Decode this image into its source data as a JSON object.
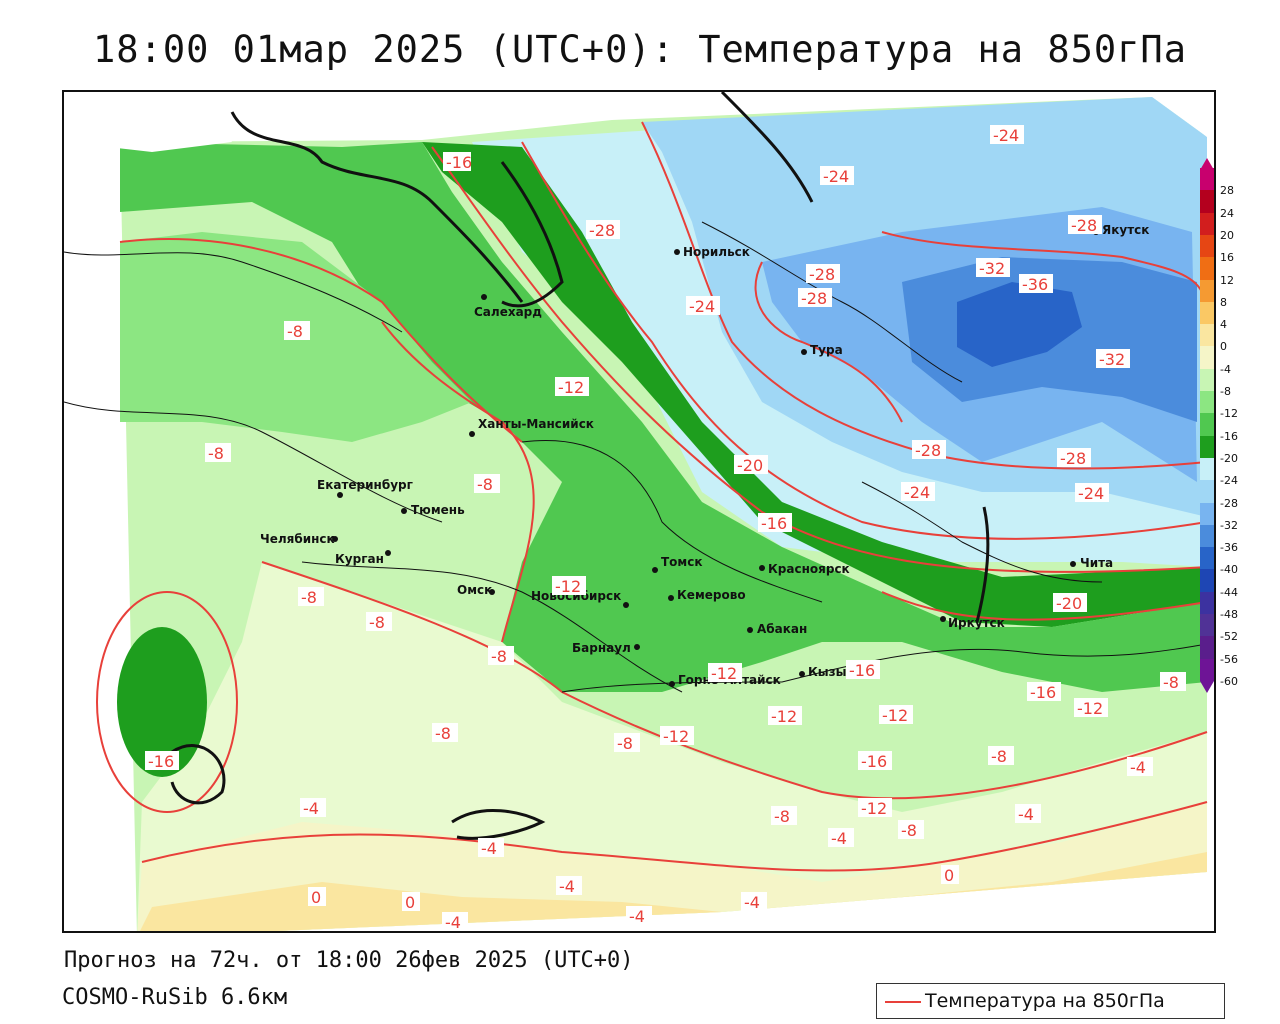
{
  "title": "18:00 01мар 2025 (UTC+0): Температура на 850гПа",
  "footer": {
    "forecast": "Прогноз на 72ч. от 18:00 26фев 2025 (UTC+0)",
    "model": "COSMO-RuSib 6.6км"
  },
  "legend": {
    "label": "Температура на 850гПа",
    "color": "#e8403a"
  },
  "colorbar": {
    "ticks": [
      "28",
      "24",
      "20",
      "16",
      "12",
      "8",
      "4",
      "0",
      "-4",
      "-8",
      "-12",
      "-16",
      "-20",
      "-24",
      "-28",
      "-32",
      "-36",
      "-40",
      "-44",
      "-48",
      "-52",
      "-56",
      "-60"
    ],
    "colors": [
      "#c8006e",
      "#b4001e",
      "#d21e1e",
      "#e64614",
      "#f06e14",
      "#f59a32",
      "#fac864",
      "#fae6a0",
      "#f5f5c8",
      "#c8f5b4",
      "#8ce682",
      "#50c850",
      "#1e9e1e",
      "#c8f0f8",
      "#a0d7f5",
      "#78b4f0",
      "#4b8cdc",
      "#2864c8",
      "#1e46b4",
      "#3c32a0",
      "#503296",
      "#5a1e8c",
      "#6e1496"
    ]
  },
  "cities": [
    {
      "name": "Норильск"
    },
    {
      "name": "Якутск"
    },
    {
      "name": "Салехард"
    },
    {
      "name": "Тура"
    },
    {
      "name": "Ханты-Мансийск"
    },
    {
      "name": "Екатеринбург"
    },
    {
      "name": "Тюмень"
    },
    {
      "name": "Челябинск"
    },
    {
      "name": "Курган"
    },
    {
      "name": "Омск"
    },
    {
      "name": "Новосибирск"
    },
    {
      "name": "Томск"
    },
    {
      "name": "Кемерово"
    },
    {
      "name": "Красноярск"
    },
    {
      "name": "Барнаул"
    },
    {
      "name": "Абакан"
    },
    {
      "name": "Иркутск"
    },
    {
      "name": "Чита"
    },
    {
      "name": "Горно-Алтайск"
    },
    {
      "name": "Кызыл"
    }
  ],
  "isotherm_labels": [
    "-16",
    "-28",
    "-24",
    "-24",
    "-28",
    "-28",
    "-28",
    "-32",
    "-36",
    "-32",
    "-8",
    "-24",
    "-12",
    "-20",
    "-8",
    "-8",
    "-28",
    "-24",
    "-28",
    "-24",
    "-16",
    "-12",
    "-8",
    "-8",
    "-8",
    "-20",
    "-16",
    "-16",
    "-12",
    "-8",
    "-12",
    "-12",
    "-16",
    "-12",
    "-8",
    "-8",
    "-8",
    "-12",
    "-16",
    "-4",
    "-4",
    "-8",
    "-4",
    "-12",
    "-4",
    "-4",
    "-4",
    "0",
    "0",
    "0",
    "-4",
    "-4",
    "-4",
    "-8"
  ]
}
